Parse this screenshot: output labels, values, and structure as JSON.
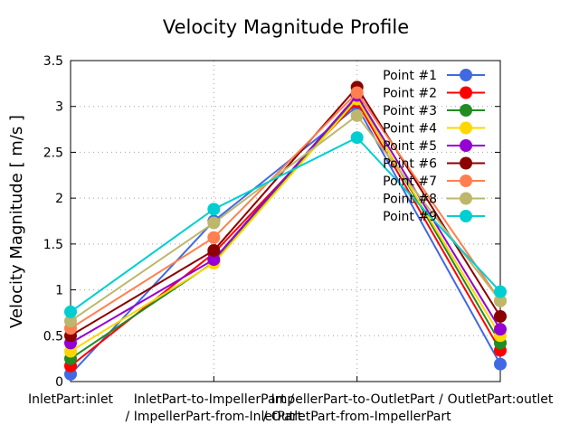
{
  "chart_data": {
    "type": "line",
    "title": "Velocity Magnitude Profile",
    "xlabel": "",
    "ylabel": "Velocity Magnitude [ m/s ]",
    "ylim": [
      0,
      3.5
    ],
    "yticks": [
      "0",
      "0.5",
      "1",
      "1.5",
      "2",
      "2.5",
      "3",
      "3.5"
    ],
    "categories": [
      [
        "InletPart:inlet"
      ],
      [
        "InletPart-to-ImpellerPart /",
        "/ ImpellerPart-from-InletPart"
      ],
      [
        "ImpellerPart-to-OutletPart /",
        "/ OutletPart-from-ImpellerPart"
      ],
      [
        "OutletPart:outlet"
      ]
    ],
    "grid": true,
    "legend_position": "top-right",
    "series": [
      {
        "name": "Point #1",
        "color": "#4169e1",
        "values": [
          0.08,
          1.75,
          3.0,
          0.19
        ]
      },
      {
        "name": "Point #2",
        "color": "#ff0000",
        "values": [
          0.17,
          1.4,
          3.05,
          0.34
        ]
      },
      {
        "name": "Point #3",
        "color": "#228b22",
        "values": [
          0.25,
          1.3,
          3.1,
          0.42
        ]
      },
      {
        "name": "Point #4",
        "color": "#ffd700",
        "values": [
          0.33,
          1.29,
          3.08,
          0.5
        ]
      },
      {
        "name": "Point #5",
        "color": "#9400d3",
        "values": [
          0.42,
          1.33,
          3.12,
          0.57
        ]
      },
      {
        "name": "Point #6",
        "color": "#8b0000",
        "values": [
          0.5,
          1.43,
          3.21,
          0.71
        ]
      },
      {
        "name": "Point #7",
        "color": "#ff7f50",
        "values": [
          0.58,
          1.57,
          3.15,
          0.88
        ]
      },
      {
        "name": "Point #8",
        "color": "#bdb76b",
        "values": [
          0.66,
          1.73,
          2.9,
          0.88
        ]
      },
      {
        "name": "Point #9",
        "color": "#00ced1",
        "values": [
          0.76,
          1.88,
          2.66,
          0.98
        ]
      }
    ]
  }
}
